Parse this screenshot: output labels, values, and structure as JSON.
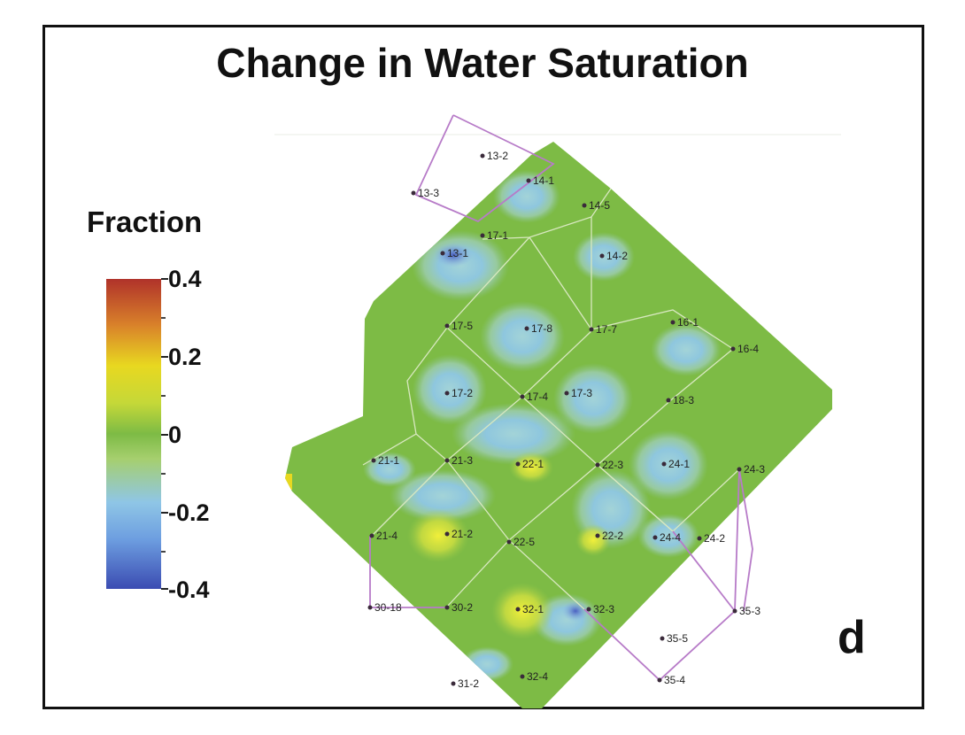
{
  "title": "Change in Water Saturation",
  "legend": {
    "title": "Fraction",
    "ticks": [
      "0.4",
      "0.2",
      "0",
      "-0.2",
      "-0.4"
    ],
    "colors": {
      "max": "#b0322a",
      "high": "#e8d820",
      "zero": "#7dbb45",
      "low": "#8fc6e6",
      "min": "#3b4cb2"
    }
  },
  "panel_label": "d",
  "wells": [
    "13-2",
    "13-3",
    "14-1",
    "14-5",
    "17-1",
    "13-1",
    "14-2",
    "17-5",
    "17-8",
    "17-7",
    "16-1",
    "16-4",
    "17-2",
    "17-4",
    "17-3",
    "18-3",
    "21-1",
    "21-3",
    "22-1",
    "22-3",
    "24-1",
    "24-3",
    "21-4",
    "21-2",
    "22-5",
    "22-2",
    "24-4",
    "24-2",
    "30-18",
    "30-2",
    "32-1",
    "32-3",
    "35-3",
    "35-5",
    "31-2",
    "32-4",
    "35-4"
  ],
  "colors": {
    "field": "#7dbb45",
    "boundary": "#b77bc8",
    "grid_lines": "#d8e8c0",
    "border": "#111111"
  }
}
